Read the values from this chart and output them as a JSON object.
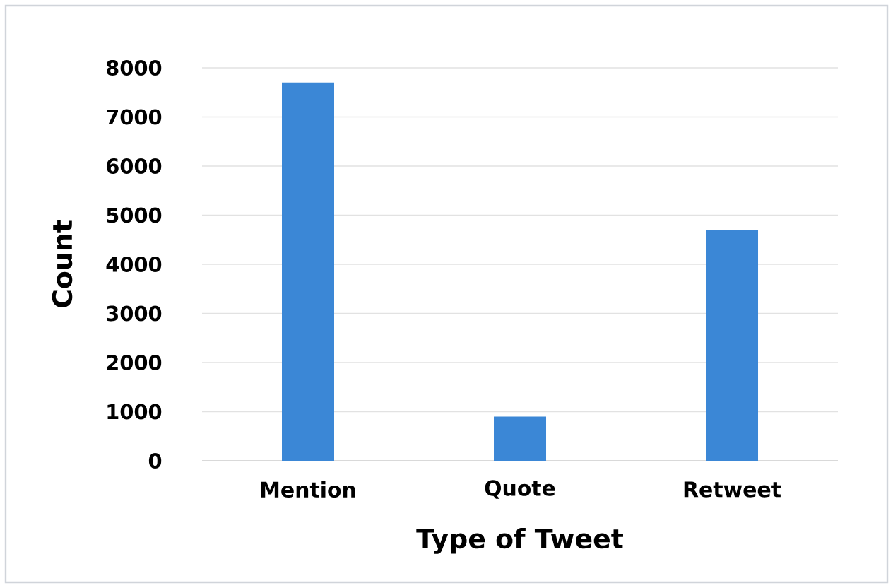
{
  "chart_data": {
    "type": "bar",
    "xlabel": "Type of Tweet",
    "ylabel": "Count",
    "categories": [
      "Mention",
      "Quote",
      "Retweet"
    ],
    "values": [
      7700,
      900,
      4700
    ],
    "color": "#3b87d6",
    "ylim": [
      0,
      8000
    ],
    "yticks": [
      0,
      1000,
      2000,
      3000,
      4000,
      5000,
      6000,
      7000,
      8000
    ],
    "grid": "y"
  }
}
